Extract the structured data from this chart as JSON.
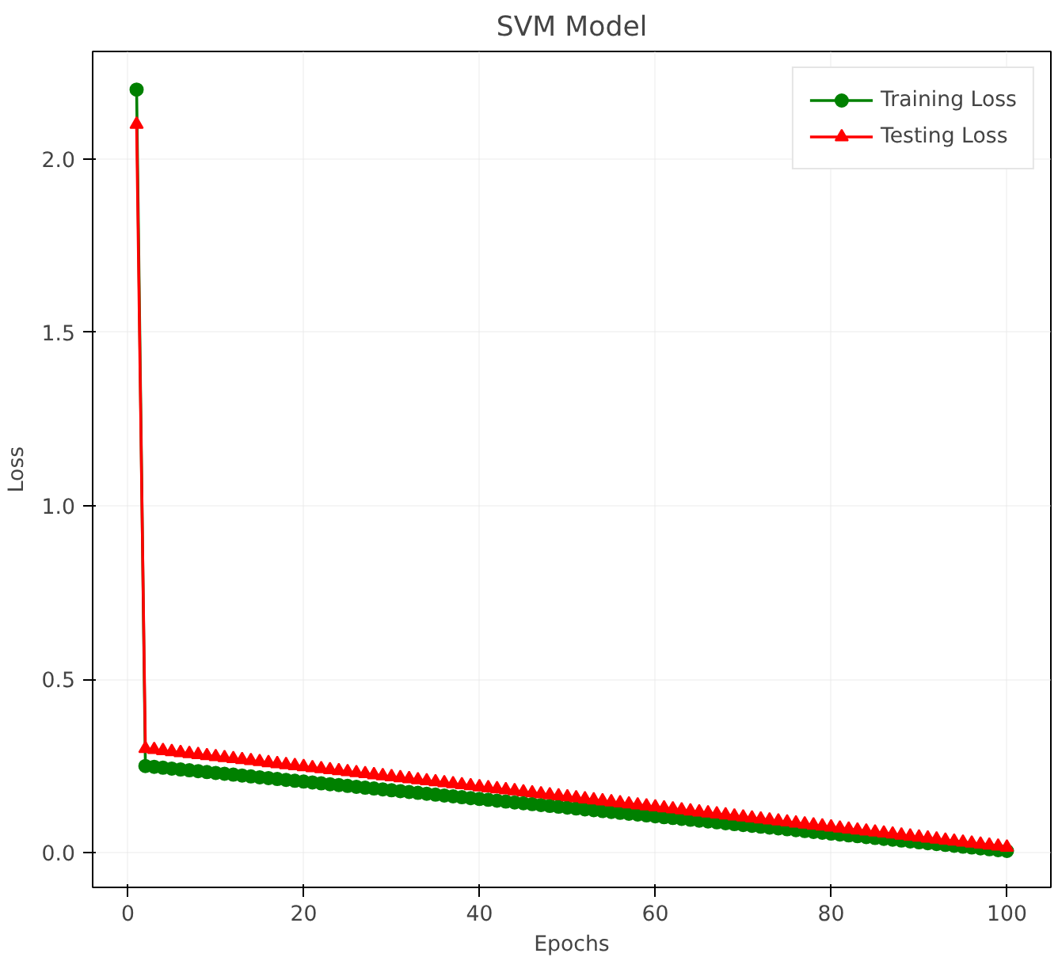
{
  "chart_data": {
    "type": "line",
    "title": "SVM Model",
    "xlabel": "Epochs",
    "ylabel": "Loss",
    "x": [
      1,
      2,
      3,
      4,
      5,
      6,
      7,
      8,
      9,
      10,
      11,
      12,
      13,
      14,
      15,
      16,
      17,
      18,
      19,
      20,
      21,
      22,
      23,
      24,
      25,
      26,
      27,
      28,
      29,
      30,
      31,
      32,
      33,
      34,
      35,
      36,
      37,
      38,
      39,
      40,
      41,
      42,
      43,
      44,
      45,
      46,
      47,
      48,
      49,
      50,
      51,
      52,
      53,
      54,
      55,
      56,
      57,
      58,
      59,
      60,
      61,
      62,
      63,
      64,
      65,
      66,
      67,
      68,
      69,
      70,
      71,
      72,
      73,
      74,
      75,
      76,
      77,
      78,
      79,
      80,
      81,
      82,
      83,
      84,
      85,
      86,
      87,
      88,
      89,
      90,
      91,
      92,
      93,
      94,
      95,
      96,
      97,
      98,
      99,
      100
    ],
    "series": [
      {
        "name": "Training Loss",
        "color": "#008000",
        "marker": "circle",
        "values": [
          2.2,
          0.25,
          0.2475,
          0.245,
          0.2425,
          0.24,
          0.2375,
          0.235,
          0.2325,
          0.23,
          0.2275,
          0.225,
          0.2225,
          0.22,
          0.2175,
          0.215,
          0.2125,
          0.21,
          0.2075,
          0.205,
          0.2025,
          0.2,
          0.1975,
          0.195,
          0.1925,
          0.19,
          0.1875,
          0.185,
          0.1825,
          0.18,
          0.1775,
          0.175,
          0.1725,
          0.17,
          0.1675,
          0.165,
          0.1625,
          0.16,
          0.1575,
          0.155,
          0.1525,
          0.15,
          0.1475,
          0.145,
          0.1425,
          0.14,
          0.1375,
          0.135,
          0.1325,
          0.13,
          0.1275,
          0.125,
          0.1225,
          0.12,
          0.1175,
          0.115,
          0.1125,
          0.11,
          0.1075,
          0.105,
          0.1025,
          0.1,
          0.0975,
          0.095,
          0.0925,
          0.09,
          0.0875,
          0.085,
          0.0825,
          0.08,
          0.0775,
          0.075,
          0.0725,
          0.07,
          0.0675,
          0.065,
          0.0625,
          0.06,
          0.0575,
          0.055,
          0.0525,
          0.05,
          0.0475,
          0.045,
          0.0425,
          0.04,
          0.0375,
          0.035,
          0.0325,
          0.03,
          0.0275,
          0.025,
          0.0225,
          0.02,
          0.0175,
          0.015,
          0.0125,
          0.01,
          0.0075,
          0.005
        ]
      },
      {
        "name": "Testing Loss",
        "color": "#ff0000",
        "marker": "triangle",
        "values": [
          2.1,
          0.3,
          0.2971,
          0.2942,
          0.2913,
          0.2884,
          0.2855,
          0.2826,
          0.2797,
          0.2768,
          0.2739,
          0.271,
          0.2681,
          0.2652,
          0.2623,
          0.2594,
          0.2565,
          0.2536,
          0.2507,
          0.2478,
          0.2449,
          0.242,
          0.2391,
          0.2362,
          0.2333,
          0.2304,
          0.2275,
          0.2246,
          0.2217,
          0.2188,
          0.2159,
          0.213,
          0.2101,
          0.2072,
          0.2043,
          0.2014,
          0.1985,
          0.1956,
          0.1927,
          0.1898,
          0.1869,
          0.184,
          0.1811,
          0.1782,
          0.1753,
          0.1724,
          0.1695,
          0.1666,
          0.1637,
          0.1608,
          0.1579,
          0.155,
          0.1521,
          0.1492,
          0.1463,
          0.1434,
          0.1405,
          0.1376,
          0.1347,
          0.1318,
          0.1289,
          0.126,
          0.1231,
          0.1202,
          0.1173,
          0.1144,
          0.1115,
          0.1086,
          0.1057,
          0.1028,
          0.0999,
          0.097,
          0.0941,
          0.0912,
          0.0883,
          0.0854,
          0.0825,
          0.0796,
          0.0767,
          0.0738,
          0.0709,
          0.068,
          0.0651,
          0.0622,
          0.0593,
          0.0564,
          0.0535,
          0.0506,
          0.0477,
          0.0448,
          0.0419,
          0.039,
          0.0361,
          0.0332,
          0.0303,
          0.0274,
          0.0245,
          0.0216,
          0.0187,
          0.0158
        ]
      }
    ],
    "xlim": [
      -4,
      105
    ],
    "xticks": [
      0,
      20,
      40,
      60,
      80,
      100
    ],
    "ylim": [
      -0.1,
      2.31
    ],
    "yticks": [
      {
        "value": 0,
        "label": "0.0"
      },
      0.5,
      {
        "value": 1,
        "label": "1.0"
      },
      1.5,
      {
        "value": 2,
        "label": "2.0"
      }
    ],
    "grid": true,
    "legend": "top right",
    "line_style": "solid"
  }
}
